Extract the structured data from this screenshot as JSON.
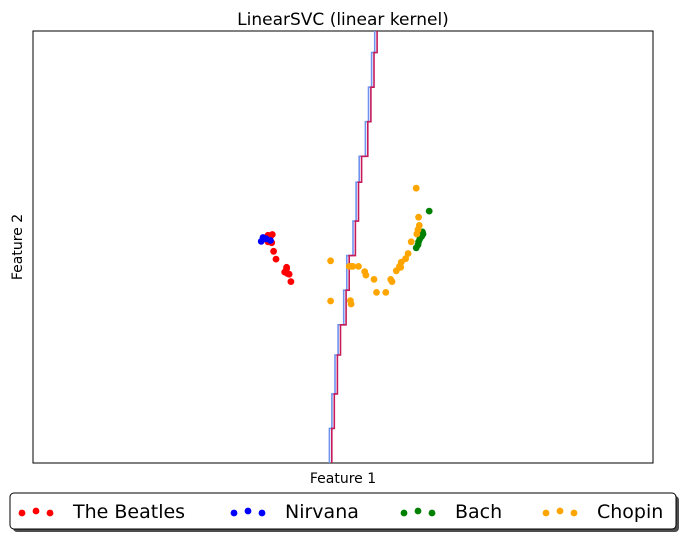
{
  "chart_data": {
    "type": "scatter",
    "title": "LinearSVC (linear kernel)",
    "xlabel": "Feature 1",
    "ylabel": "Feature 2",
    "xlim": [
      0,
      1
    ],
    "ylim": [
      0,
      1
    ],
    "xticks": [],
    "yticks": [],
    "grid": false,
    "legend_position": "bottom-center, outside plot",
    "series": [
      {
        "name": "The Beatles",
        "color": "#ff0000",
        "points": [
          [
            0.383,
            0.525
          ],
          [
            0.379,
            0.527
          ],
          [
            0.386,
            0.529
          ],
          [
            0.385,
            0.51
          ],
          [
            0.379,
            0.512
          ],
          [
            0.377,
            0.519
          ],
          [
            0.388,
            0.49
          ],
          [
            0.392,
            0.472
          ],
          [
            0.409,
            0.453
          ],
          [
            0.409,
            0.45
          ],
          [
            0.41,
            0.439
          ],
          [
            0.406,
            0.442
          ],
          [
            0.416,
            0.42
          ],
          [
            0.413,
            0.437
          ]
        ]
      },
      {
        "name": "Nirvana",
        "color": "#0000ff",
        "points": [
          [
            0.368,
            0.513
          ],
          [
            0.376,
            0.519
          ],
          [
            0.383,
            0.515
          ],
          [
            0.371,
            0.522
          ]
        ]
      },
      {
        "name": "Bach",
        "color": "#008000",
        "points": [
          [
            0.639,
            0.583
          ],
          [
            0.628,
            0.535
          ],
          [
            0.627,
            0.525
          ],
          [
            0.622,
            0.512
          ],
          [
            0.618,
            0.498
          ],
          [
            0.624,
            0.519
          ],
          [
            0.629,
            0.53
          ],
          [
            0.621,
            0.505
          ]
        ]
      },
      {
        "name": "Chopin",
        "color": "#ffa500",
        "points": [
          [
            0.618,
            0.636
          ],
          [
            0.622,
            0.569
          ],
          [
            0.621,
            0.54
          ],
          [
            0.623,
            0.55
          ],
          [
            0.619,
            0.53
          ],
          [
            0.61,
            0.512
          ],
          [
            0.605,
            0.485
          ],
          [
            0.601,
            0.473
          ],
          [
            0.594,
            0.465
          ],
          [
            0.593,
            0.453
          ],
          [
            0.586,
            0.445
          ],
          [
            0.579,
            0.42
          ],
          [
            0.577,
            0.425
          ],
          [
            0.554,
            0.395
          ],
          [
            0.537,
            0.435
          ],
          [
            0.55,
            0.425
          ],
          [
            0.525,
            0.455
          ],
          [
            0.516,
            0.455
          ],
          [
            0.51,
            0.455
          ],
          [
            0.513,
            0.455
          ],
          [
            0.535,
            0.443
          ],
          [
            0.569,
            0.395
          ],
          [
            0.48,
            0.468
          ],
          [
            0.512,
            0.376
          ],
          [
            0.513,
            0.368
          ],
          [
            0.48,
            0.375
          ],
          [
            0.591,
            0.455
          ]
        ]
      }
    ],
    "decision_boundary": {
      "colors": [
        "#6f93ee",
        "#c51b5a"
      ],
      "steps": [
        [
          0.482,
          0.0
        ],
        [
          0.482,
          0.08
        ],
        [
          0.486,
          0.08
        ],
        [
          0.486,
          0.16
        ],
        [
          0.491,
          0.16
        ],
        [
          0.491,
          0.25
        ],
        [
          0.496,
          0.25
        ],
        [
          0.496,
          0.32
        ],
        [
          0.505,
          0.32
        ],
        [
          0.505,
          0.4
        ],
        [
          0.51,
          0.4
        ],
        [
          0.51,
          0.48
        ],
        [
          0.52,
          0.48
        ],
        [
          0.52,
          0.56
        ],
        [
          0.525,
          0.56
        ],
        [
          0.525,
          0.65
        ],
        [
          0.53,
          0.65
        ],
        [
          0.53,
          0.71
        ],
        [
          0.54,
          0.71
        ],
        [
          0.54,
          0.79
        ],
        [
          0.545,
          0.79
        ],
        [
          0.545,
          0.87
        ],
        [
          0.55,
          0.87
        ],
        [
          0.55,
          0.95
        ],
        [
          0.555,
          0.95
        ],
        [
          0.555,
          1.0
        ]
      ]
    }
  }
}
